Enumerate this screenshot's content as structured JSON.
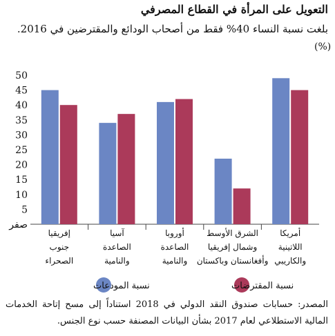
{
  "chart_data": {
    "type": "bar",
    "title": "التعويل على المرأة في القطاع المصرفي",
    "subtitle": "بلغت نسبة النساء 40% فقط من أصحاب الودائع والمقترضين في 2016.",
    "unit": "(%)",
    "ylim": [
      0,
      50
    ],
    "yticks": [
      "صفر",
      "5",
      "10",
      "15",
      "20",
      "25",
      "30",
      "35",
      "40",
      "45",
      "50"
    ],
    "grid": false,
    "legend_position": "bottom",
    "categories": [
      [
        "إفريقيا",
        "جنوب",
        "الصحراء"
      ],
      [
        "آسيا",
        "الصاعدة",
        "والنامية"
      ],
      [
        "أوروبا",
        "الصاعدة",
        "والنامية"
      ],
      [
        "الشرق الأوسط",
        "وشمال إفريقيا",
        "وأفغانستان وباكستان"
      ],
      [
        "أمريكا",
        "اللاتينية",
        "والكاريبي"
      ]
    ],
    "series": [
      {
        "name": "نسبة المودعات",
        "color": "#6b86c4",
        "values": [
          45,
          34,
          41,
          22,
          49
        ]
      },
      {
        "name": "نسبة المقترضات",
        "color": "#ab3a5a",
        "values": [
          40,
          37,
          42,
          12,
          45
        ]
      }
    ],
    "source": "المصدر: حسابات صندوق النقد الدولي في 2018 استناداً إلى مسح إتاحة الخدمات المالية الاستطلاعي لعام 2017 بشأن البيانات المصنفة حسب نوع الجنس."
  }
}
